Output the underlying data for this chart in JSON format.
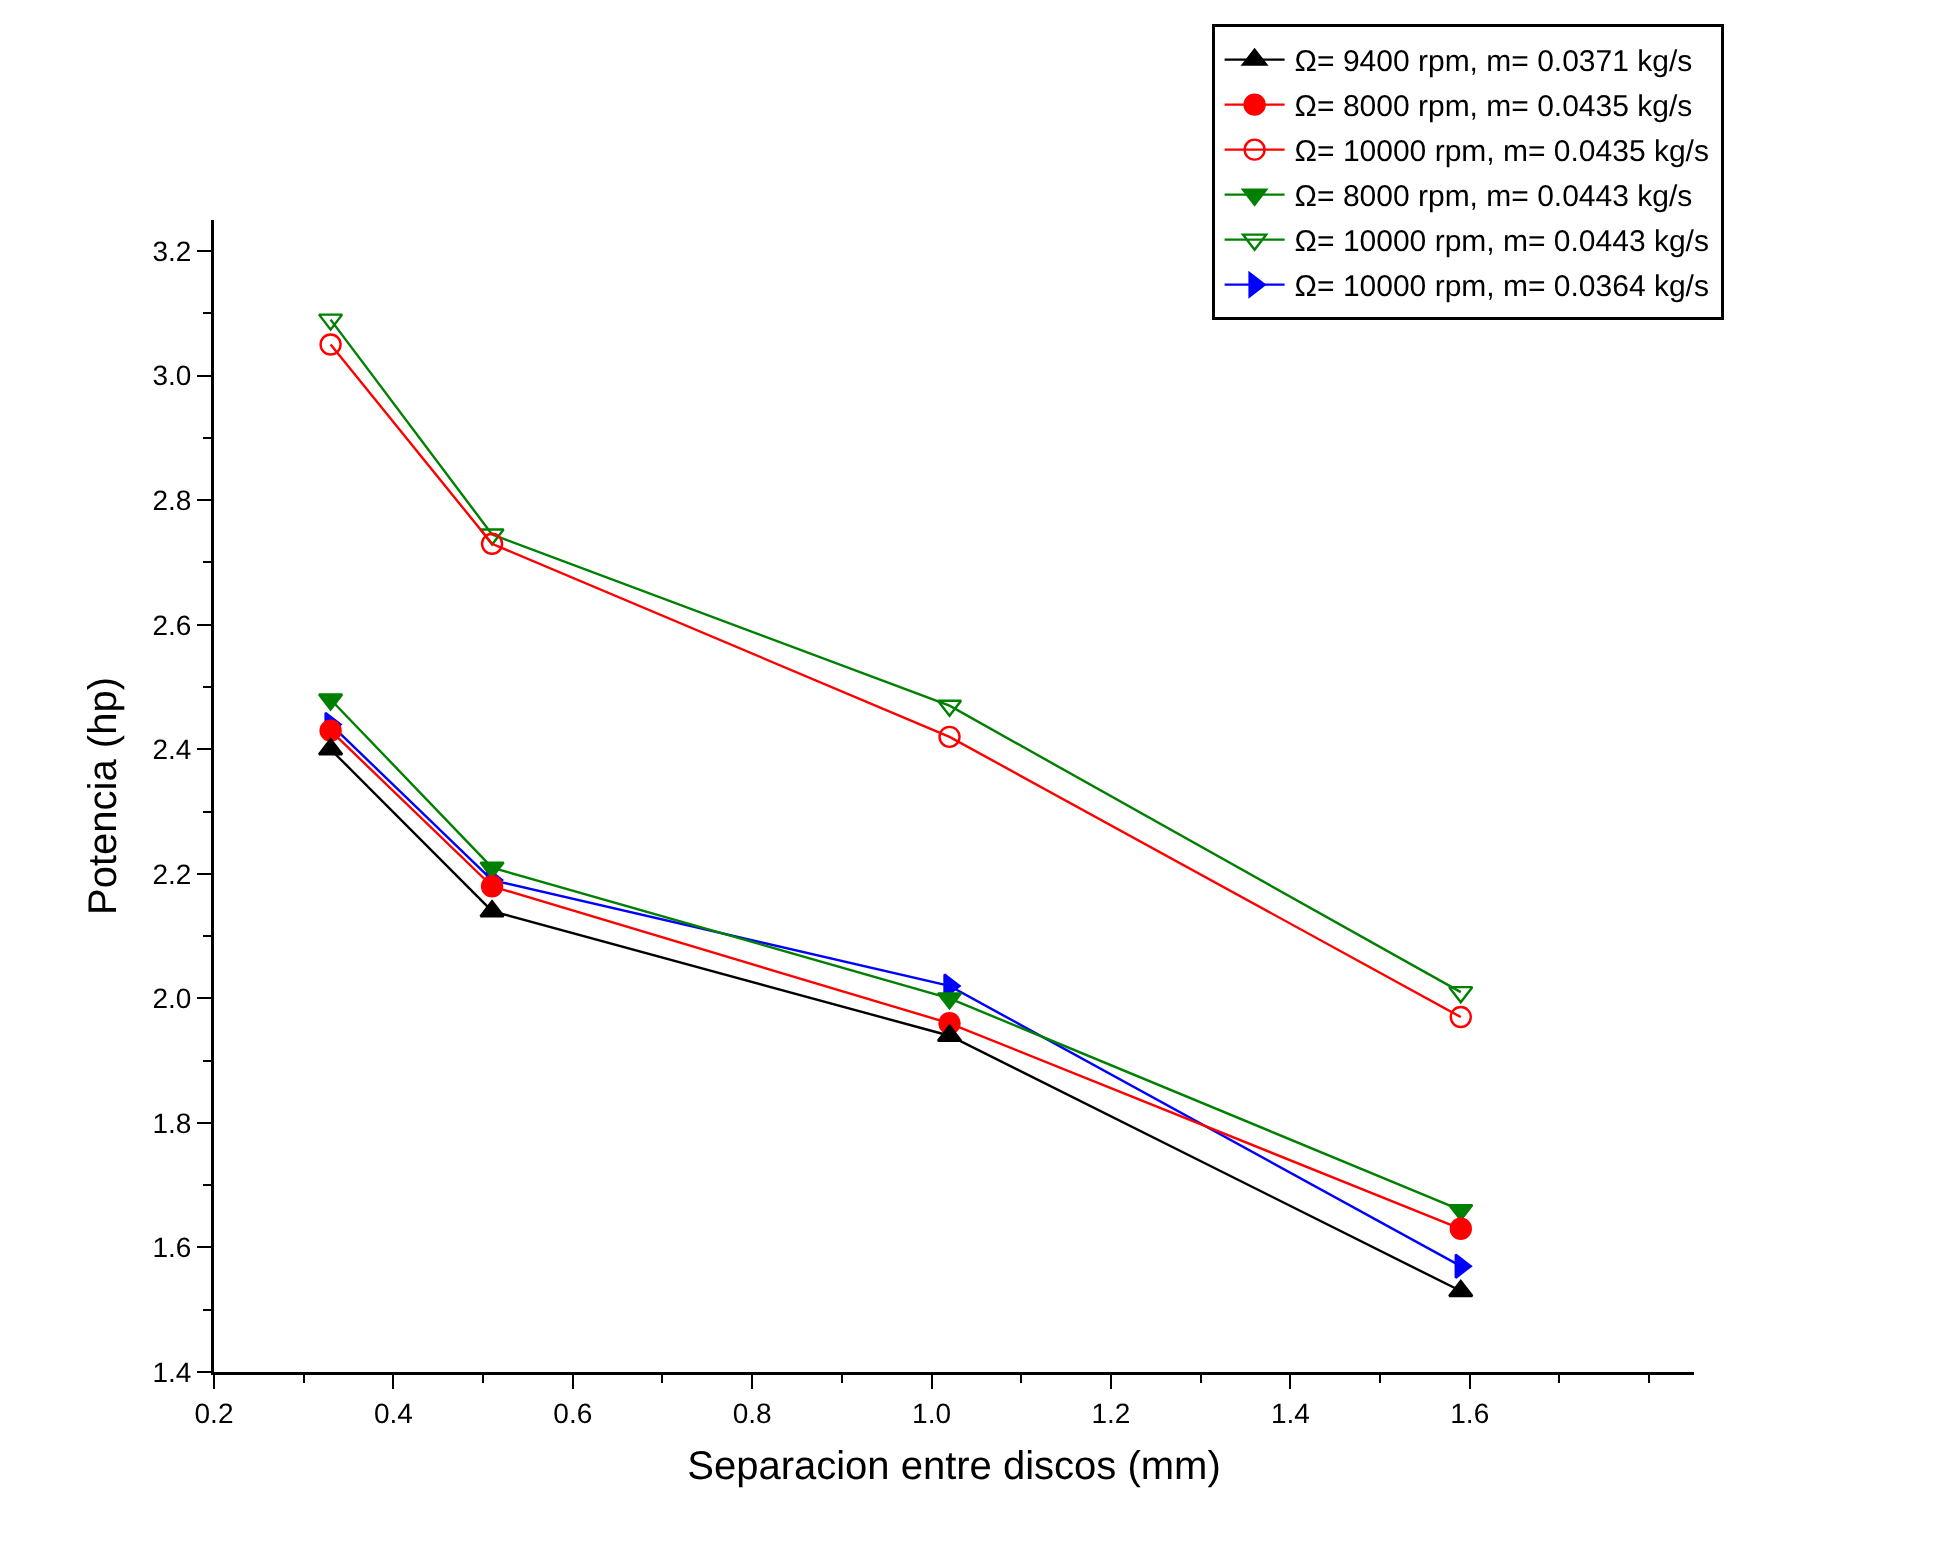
{
  "chart_data": {
    "type": "line",
    "xlabel": "Separacion entre discos (mm)",
    "ylabel": "Potencia (hp)",
    "x": [
      0.33,
      0.51,
      1.02,
      1.59
    ],
    "xlim": [
      0.2,
      1.85
    ],
    "xticks": [
      0.2,
      0.4,
      0.6,
      0.8,
      {
        "value": 1,
        "label": "1.0"
      },
      1.2,
      1.4,
      1.6
    ],
    "ylim": [
      1.4,
      3.25
    ],
    "yticks": [
      1.4,
      1.6,
      1.8,
      {
        "value": 2,
        "label": "2.0"
      },
      2.2,
      2.4,
      2.6,
      2.8,
      {
        "value": 3,
        "label": "3.0"
      },
      3.2
    ],
    "grid": false,
    "legend": "top right",
    "line_style": "solid",
    "series": [
      {
        "name": "Ω= 9400 rpm, m= 0.0371 kg/s",
        "color": "#000000",
        "marker": "triangle-up",
        "values": [
          2.4,
          2.14,
          1.94,
          1.53
        ]
      },
      {
        "name": "Ω= 8000 rpm, m= 0.0435 kg/s",
        "color": "#ff0000",
        "marker": "circle",
        "values": [
          2.43,
          2.18,
          1.96,
          1.63
        ]
      },
      {
        "name": "Ω= 10000 rpm, m= 0.0435 kg/s",
        "color": "#ff0000",
        "marker": "circle-open",
        "values": [
          3.05,
          2.73,
          2.42,
          1.97
        ]
      },
      {
        "name": "Ω= 8000 rpm, m= 0.0443 kg/s",
        "color": "#008000",
        "marker": "triangle-down",
        "values": [
          2.48,
          2.21,
          2.0,
          1.66
        ]
      },
      {
        "name": "Ω= 10000 rpm, m= 0.0443 kg/s",
        "color": "#008000",
        "marker": "triangle-down-open",
        "values": [
          3.09,
          2.745,
          2.47,
          2.01
        ]
      },
      {
        "name": "Ω= 10000 rpm, m= 0.0364 kg/s",
        "color": "#0000ff",
        "marker": "triangle-right",
        "values": [
          2.44,
          2.19,
          2.02,
          1.57
        ]
      }
    ]
  }
}
